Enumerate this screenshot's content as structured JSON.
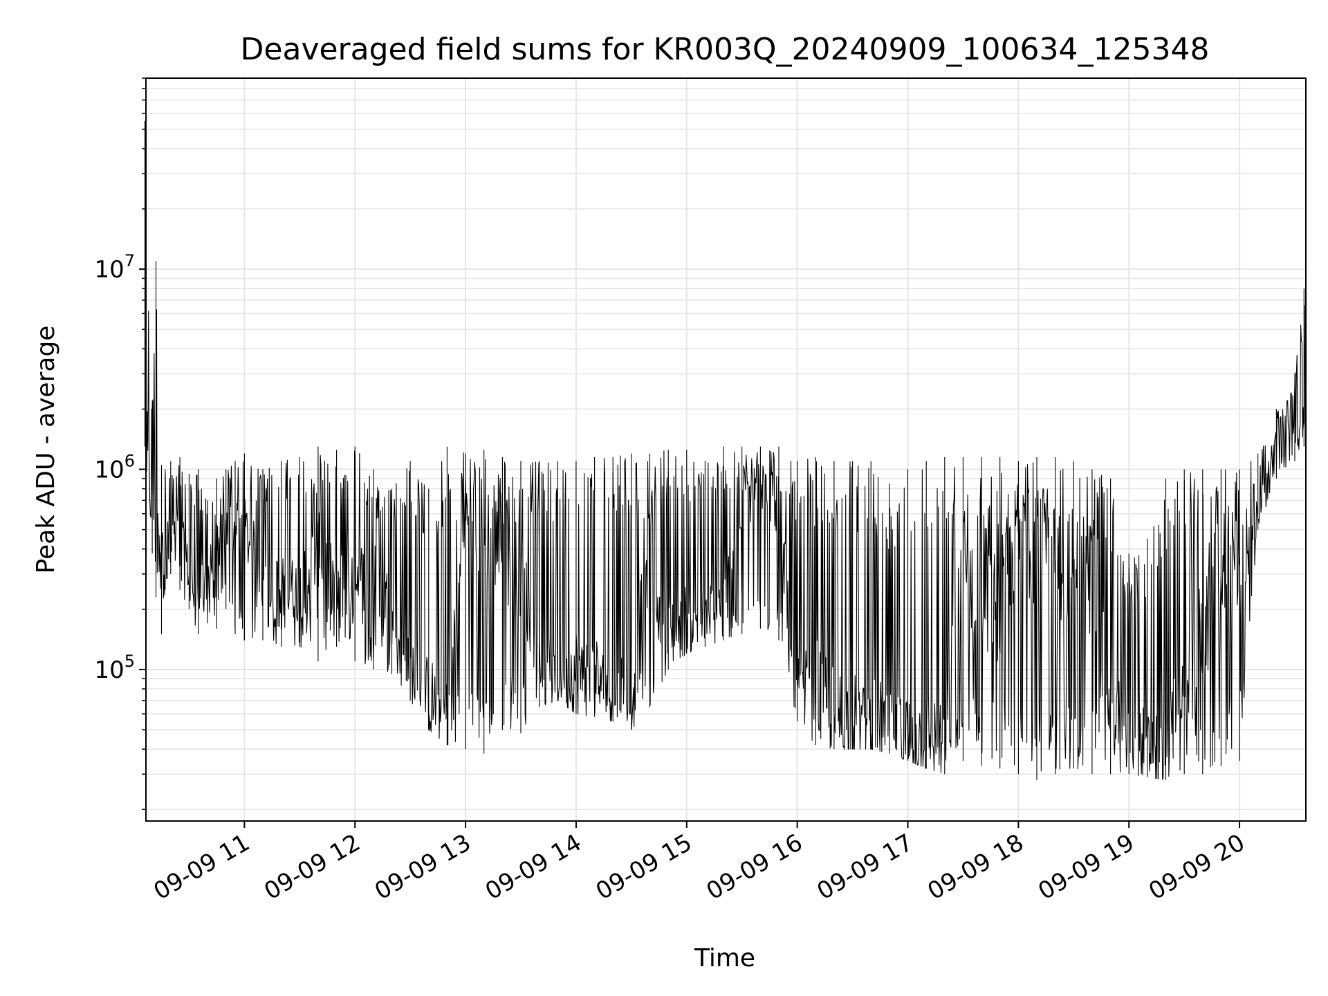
{
  "chart_data": {
    "type": "line",
    "title": "Deaveraged field sums for KR003Q_20240909_100634_125348",
    "xlabel": "Time",
    "ylabel": "Peak ADU - average",
    "yscale": "log",
    "grid": true,
    "grid_minor": true,
    "line_color": "#000000",
    "grid_color": "#e6e6e6",
    "xlim": [
      "2024-09-09 10:06:34",
      "2024-09-09 20:36:00"
    ],
    "ylim": [
      17500,
      90000000
    ],
    "x_ticks": [
      {
        "label": "09-09 11",
        "time": "2024-09-09 11:00"
      },
      {
        "label": "09-09 12",
        "time": "2024-09-09 12:00"
      },
      {
        "label": "09-09 13",
        "time": "2024-09-09 13:00"
      },
      {
        "label": "09-09 14",
        "time": "2024-09-09 14:00"
      },
      {
        "label": "09-09 15",
        "time": "2024-09-09 15:00"
      },
      {
        "label": "09-09 16",
        "time": "2024-09-09 16:00"
      },
      {
        "label": "09-09 17",
        "time": "2024-09-09 17:00"
      },
      {
        "label": "09-09 18",
        "time": "2024-09-09 18:00"
      },
      {
        "label": "09-09 19",
        "time": "2024-09-09 19:00"
      },
      {
        "label": "09-09 20",
        "time": "2024-09-09 20:00"
      }
    ],
    "y_ticks": [
      {
        "base": "10",
        "exp": "5",
        "value": 100000
      },
      {
        "base": "10",
        "exp": "6",
        "value": 1000000
      },
      {
        "base": "10",
        "exp": "7",
        "value": 10000000
      }
    ],
    "series": [
      {
        "x": [
          "2024-09-09 10:06",
          "2024-09-09 10:10",
          "2024-09-09 10:12",
          "2024-09-09 10:15",
          "2024-09-09 10:17",
          "2024-09-09 10:20",
          "2024-09-09 10:25",
          "2024-09-09 10:30",
          "2024-09-09 10:35",
          "2024-09-09 10:40",
          "2024-09-09 10:45",
          "2024-09-09 10:50",
          "2024-09-09 10:55",
          "2024-09-09 11:00",
          "2024-09-09 11:10",
          "2024-09-09 11:20",
          "2024-09-09 11:30",
          "2024-09-09 11:40",
          "2024-09-09 11:50",
          "2024-09-09 12:00",
          "2024-09-09 12:10",
          "2024-09-09 12:20",
          "2024-09-09 12:30",
          "2024-09-09 12:40",
          "2024-09-09 12:50",
          "2024-09-09 13:00",
          "2024-09-09 13:10",
          "2024-09-09 13:20",
          "2024-09-09 13:30",
          "2024-09-09 13:40",
          "2024-09-09 13:50",
          "2024-09-09 14:00",
          "2024-09-09 14:10",
          "2024-09-09 14:20",
          "2024-09-09 14:30",
          "2024-09-09 14:40",
          "2024-09-09 14:50",
          "2024-09-09 15:00",
          "2024-09-09 15:10",
          "2024-09-09 15:20",
          "2024-09-09 15:30",
          "2024-09-09 15:40",
          "2024-09-09 15:50",
          "2024-09-09 16:00",
          "2024-09-09 16:10",
          "2024-09-09 16:20",
          "2024-09-09 16:30",
          "2024-09-09 16:40",
          "2024-09-09 16:50",
          "2024-09-09 17:00",
          "2024-09-09 17:10",
          "2024-09-09 17:20",
          "2024-09-09 17:30",
          "2024-09-09 17:40",
          "2024-09-09 17:50",
          "2024-09-09 18:00",
          "2024-09-09 18:10",
          "2024-09-09 18:20",
          "2024-09-09 18:30",
          "2024-09-09 18:40",
          "2024-09-09 18:50",
          "2024-09-09 19:00",
          "2024-09-09 19:10",
          "2024-09-09 19:20",
          "2024-09-09 19:30",
          "2024-09-09 19:40",
          "2024-09-09 19:50",
          "2024-09-09 20:00",
          "2024-09-09 20:10",
          "2024-09-09 20:20",
          "2024-09-09 20:30",
          "2024-09-09 20:35"
        ],
        "low": [
          1300000,
          380000,
          230000,
          150000,
          250000,
          300000,
          250000,
          200000,
          150000,
          170000,
          160000,
          200000,
          150000,
          140000,
          140000,
          130000,
          130000,
          110000,
          130000,
          110000,
          100000,
          95000,
          70000,
          50000,
          42000,
          40000,
          38000,
          50000,
          48000,
          65000,
          70000,
          60000,
          58000,
          55000,
          50000,
          65000,
          100000,
          120000,
          130000,
          140000,
          150000,
          160000,
          140000,
          55000,
          42000,
          40000,
          40000,
          40000,
          38000,
          35000,
          32000,
          30000,
          35000,
          33000,
          32000,
          30000,
          28000,
          30000,
          32000,
          30000,
          30000,
          30000,
          29000,
          28000,
          30000,
          30000,
          33000,
          35000,
          500000,
          900000,
          1100000,
          1300000
        ],
        "high": [
          55000000,
          2200000,
          11000000,
          1050000,
          1000000,
          1100000,
          1150000,
          950000,
          1000000,
          700000,
          900000,
          1000000,
          1100000,
          1200000,
          1000000,
          1100000,
          1150000,
          1300000,
          1250000,
          1300000,
          1000000,
          800000,
          1100000,
          800000,
          1300000,
          1200000,
          1250000,
          1150000,
          1100000,
          1100000,
          1100000,
          1100000,
          1150000,
          1150000,
          1200000,
          1200000,
          1250000,
          1250000,
          1100000,
          1300000,
          1300000,
          1300000,
          1300000,
          1100000,
          1150000,
          1100000,
          1100000,
          1100000,
          850000,
          1000000,
          1100000,
          1150000,
          1150000,
          1150000,
          1150000,
          1100000,
          1150000,
          1150000,
          1100000,
          1000000,
          900000,
          380000,
          450000,
          900000,
          1000000,
          1000000,
          1000000,
          1000000,
          1200000,
          2000000,
          3000000,
          8000000
        ],
        "base": [
          1500000,
          600000,
          700000,
          500000,
          600000,
          500000,
          500000,
          300000,
          220000,
          300000,
          400000,
          500000,
          500000,
          500000,
          300000,
          250000,
          250000,
          400000,
          250000,
          300000,
          300000,
          200000,
          100000,
          70000,
          60000,
          600000,
          500000,
          400000,
          300000,
          100000,
          90000,
          100000,
          90000,
          80000,
          70000,
          400000,
          150000,
          180000,
          180000,
          200000,
          700000,
          800000,
          700000,
          70000,
          80000,
          60000,
          55000,
          50000,
          50000,
          45000,
          45000,
          40000,
          300000,
          250000,
          200000,
          500000,
          400000,
          300000,
          350000,
          200000,
          70000,
          45000,
          40000,
          35000,
          100000,
          150000,
          200000,
          300000,
          600000,
          1500000,
          1700000,
          1900000
        ]
      }
    ]
  }
}
